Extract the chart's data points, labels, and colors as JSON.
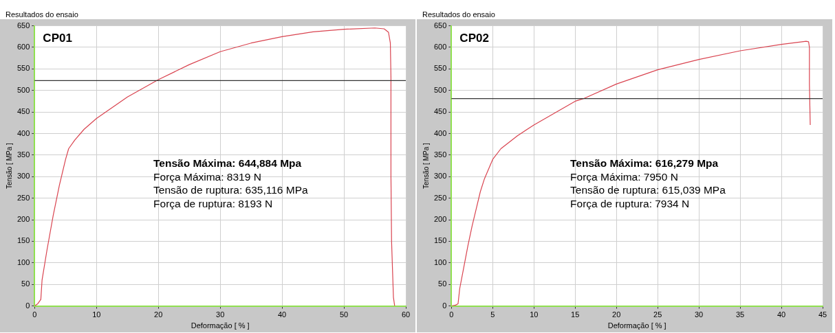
{
  "chart_data": [
    {
      "type": "line",
      "title": "Resultados do ensaio",
      "subtitle": "CP01",
      "xlabel": "Deformação [ % ]",
      "ylabel": "Tensão [ MPa ]",
      "annotations": [
        "Tensão Máxima: 644,884 Mpa",
        "Força Máxima: 8319 N",
        "Tensão de ruptura: 635,116 MPa",
        "Força de ruptura: 8193 N"
      ],
      "series": [
        {
          "color": "#d9434f",
          "x": [
            0,
            0.5,
            1,
            1.2,
            2,
            3,
            4,
            5,
            5.5,
            6.5,
            8,
            10,
            15,
            20,
            25,
            30,
            35,
            40,
            45,
            50,
            55,
            56.5,
            57.2,
            57.5,
            57.6,
            57.6,
            57.7,
            58,
            58.2
          ],
          "values": [
            0,
            5,
            15,
            60,
            130,
            210,
            280,
            340,
            365,
            385,
            410,
            435,
            485,
            525,
            560,
            590,
            610,
            625,
            636,
            642,
            645,
            643,
            635,
            610,
            530,
            300,
            150,
            20,
            0
          ]
        }
      ],
      "ref_lines": [
        {
          "axis": "y",
          "value": 523,
          "color": "#333333"
        }
      ],
      "xlim": [
        0,
        60
      ],
      "xticks": [
        0,
        10,
        20,
        30,
        40,
        50,
        60
      ],
      "ylim": [
        0,
        650
      ],
      "yticks": [
        0,
        50,
        100,
        150,
        200,
        250,
        300,
        350,
        400,
        450,
        500,
        550,
        600,
        650
      ],
      "grid": true,
      "legend": false,
      "marker": "none",
      "line_style": "solid"
    },
    {
      "type": "line",
      "title": "Resultados do ensaio",
      "subtitle": "CP02",
      "xlabel": "Deformação [ % ]",
      "ylabel": "Tensão [ MPa ]",
      "annotations": [
        "Tensão Máxima: 616,279 Mpa",
        "Força Máxima: 7950 N",
        "Tensão de ruptura: 615,039 MPa",
        "Força de ruptura: 7934 N"
      ],
      "series": [
        {
          "color": "#d9434f",
          "x": [
            0,
            0.5,
            0.8,
            1,
            1.5,
            2,
            2.5,
            3,
            3.5,
            4,
            5,
            6,
            8,
            10,
            15,
            16,
            20,
            25,
            30,
            35,
            40,
            43,
            43.3,
            43.4,
            43.4,
            43.5
          ],
          "values": [
            0,
            2,
            5,
            40,
            90,
            140,
            185,
            225,
            265,
            295,
            340,
            365,
            395,
            420,
            475,
            481,
            515,
            548,
            572,
            592,
            607,
            614,
            613,
            600,
            515,
            420
          ]
        }
      ],
      "ref_lines": [
        {
          "axis": "y",
          "value": 481,
          "color": "#333333"
        }
      ],
      "xlim": [
        0,
        45
      ],
      "xticks": [
        0,
        5,
        10,
        15,
        20,
        25,
        30,
        35,
        40,
        45
      ],
      "ylim": [
        0,
        650
      ],
      "yticks": [
        0,
        50,
        100,
        150,
        200,
        250,
        300,
        350,
        400,
        450,
        500,
        550,
        600,
        650
      ],
      "grid": true,
      "legend": false,
      "marker": "none",
      "line_style": "solid"
    }
  ]
}
